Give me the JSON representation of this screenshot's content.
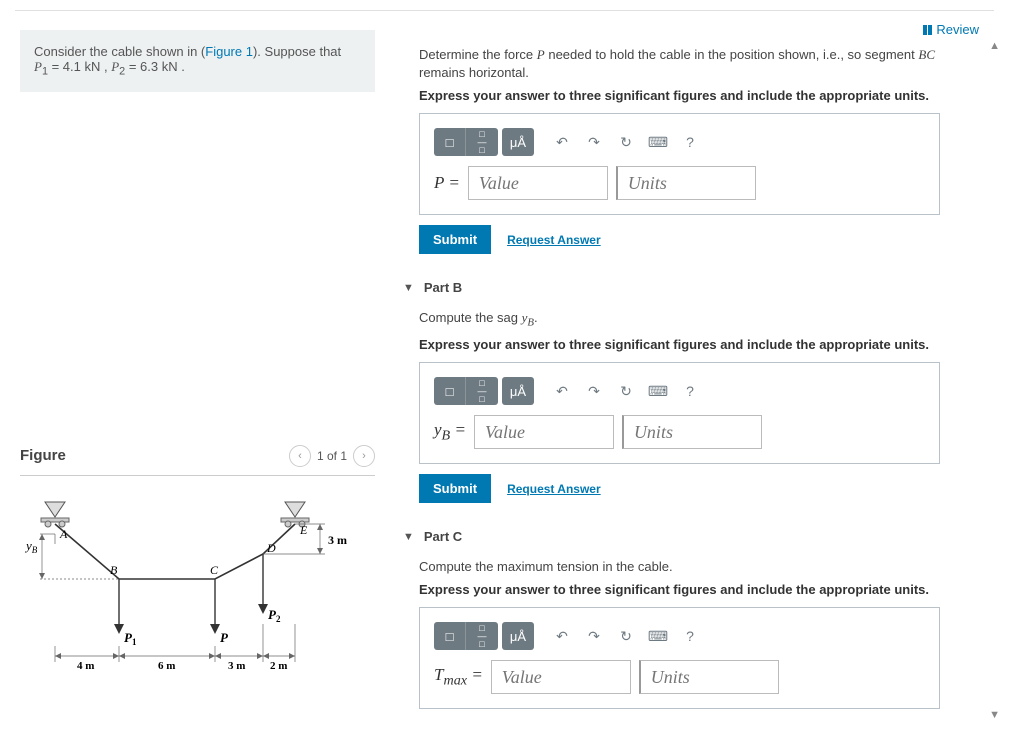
{
  "header": {
    "review_label": "Review"
  },
  "problem": {
    "intro": "Consider the cable shown in (",
    "figure_link": "Figure 1",
    "intro2": "). Suppose that",
    "eq_html": "<span class='math'>P</span><sub>1</sub> = 4.1 kN , <span class='math'>P</span><sub>2</sub> = 6.3 kN ."
  },
  "figure": {
    "title": "Figure",
    "counter": "1 of 1",
    "labels": {
      "A": "A",
      "B": "B",
      "C": "C",
      "D": "D",
      "E": "E",
      "yB": "y",
      "yB_sub": "B",
      "P1": "P",
      "P1_sub": "1",
      "P": "P",
      "P2": "P",
      "P2_sub": "2",
      "d3m": "3 m",
      "d4m": "4 m",
      "d6m": "6 m",
      "d3m2": "3 m",
      "d2m": "2 m"
    }
  },
  "partA": {
    "prompt_pre": "Determine the force ",
    "prompt_var": "P",
    "prompt_mid": " needed to hold the cable in the position shown, i.e., so segment ",
    "prompt_seg": "BC",
    "prompt_post": " remains horizontal.",
    "instruction": "Express your answer to three significant figures and include the appropriate units.",
    "var_label": "P =",
    "value_ph": "Value",
    "units_ph": "Units",
    "submit": "Submit",
    "request": "Request Answer"
  },
  "partB": {
    "title": "Part B",
    "prompt_pre": "Compute the sag ",
    "prompt_var_html": "<span class='math'>y<sub>B</sub></span>.",
    "instruction": "Express your answer to three significant figures and include the appropriate units.",
    "var_label_html": "<span class='math'>y<sub>B</sub></span> =",
    "value_ph": "Value",
    "units_ph": "Units",
    "submit": "Submit",
    "request": "Request Answer"
  },
  "partC": {
    "title": "Part C",
    "prompt": "Compute the maximum tension in the cable.",
    "instruction": "Express your answer to three significant figures and include the appropriate units.",
    "var_label_html": "<span class='math'>T</span><sub>max</sub> =",
    "value_ph": "Value",
    "units_ph": "Units"
  },
  "toolbar": {
    "tmpl": "□",
    "frac": "□/□",
    "mu": "μÅ",
    "undo": "↶",
    "redo": "↷",
    "reset": "↻",
    "keyb": "⌨",
    "help": "?"
  }
}
